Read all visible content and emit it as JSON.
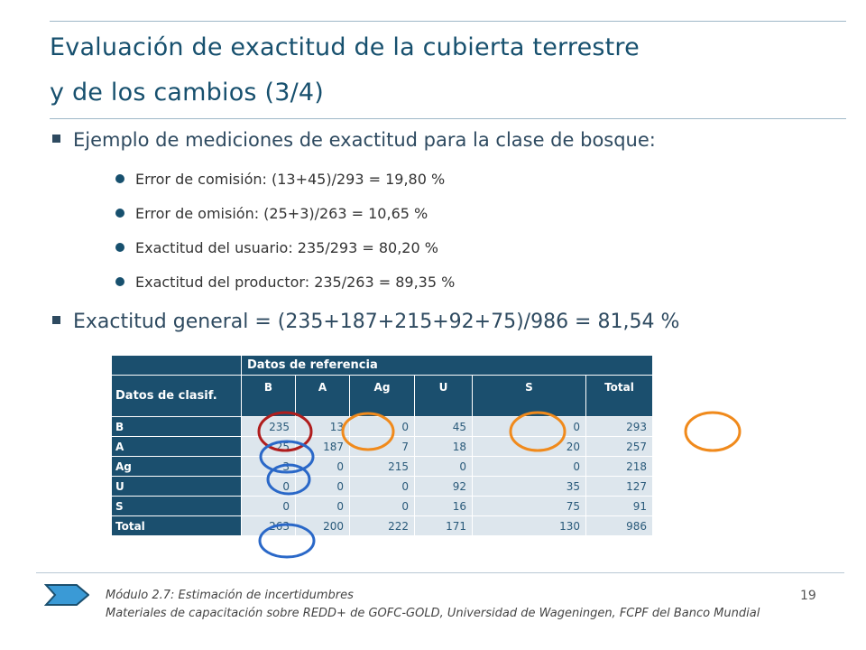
{
  "title": {
    "line1": "Evaluación de exactitud de la cubierta terrestre",
    "line2": "y de los cambios (3/4)"
  },
  "bullets": {
    "b1": "Ejemplo de mediciones de exactitud para la clase de bosque:",
    "sub": [
      "Error de comisión: (13+45)/293 = 19,80 %",
      "Error de omisión: (25+3)/263 = 10,65 %",
      "Exactitud del usuario: 235/293 = 80,20 %",
      "Exactitud del productor: 235/263 = 89,35 %"
    ],
    "b2": "Exactitud general = (235+187+215+92+75)/986 = 81,54 %"
  },
  "table": {
    "ref_header": "Datos de referencia",
    "corner_label": "Datos de clasif.",
    "columns": [
      "B",
      "A",
      "Ag",
      "U",
      "S",
      "Total"
    ],
    "rows": [
      {
        "label": "B",
        "cells": [
          "235",
          "13",
          "0",
          "45",
          "0",
          "293"
        ]
      },
      {
        "label": "A",
        "cells": [
          "25",
          "187",
          "7",
          "18",
          "20",
          "257"
        ]
      },
      {
        "label": "Ag",
        "cells": [
          "3",
          "0",
          "215",
          "0",
          "0",
          "218"
        ]
      },
      {
        "label": "U",
        "cells": [
          "0",
          "0",
          "0",
          "92",
          "35",
          "127"
        ]
      },
      {
        "label": "S",
        "cells": [
          "0",
          "0",
          "0",
          "16",
          "75",
          "91"
        ]
      },
      {
        "label": "Total",
        "cells": [
          "263",
          "200",
          "222",
          "171",
          "130",
          "986"
        ]
      }
    ]
  },
  "highlight_colors": {
    "red": "#b01d1d",
    "orange": "#f08a1c",
    "blue": "#2a68c8"
  },
  "footer": {
    "module": "Módulo 2.7: Estimación de incertidumbres",
    "materials": "Materiales de capacitación sobre REDD+ de GOFC-GOLD, Universidad de Wageningen, FCPF del Banco Mundial",
    "page_number": "19"
  }
}
